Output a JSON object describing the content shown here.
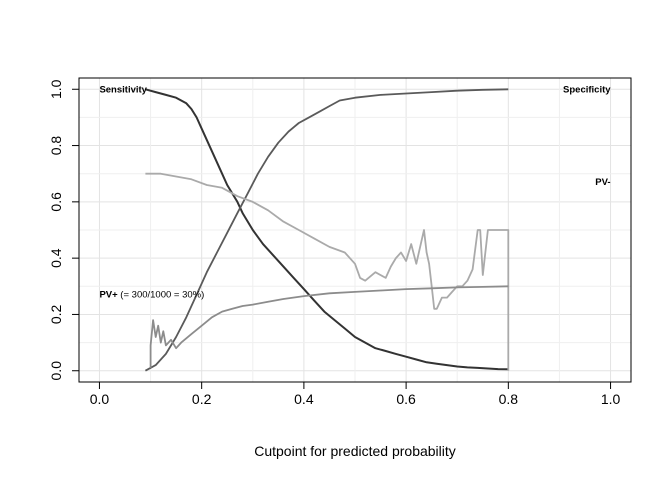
{
  "chart_data": {
    "type": "line",
    "title": "",
    "xlabel": "Cutpoint for predicted probability",
    "ylabel": "",
    "xlim": [
      -0.04,
      1.04
    ],
    "ylim": [
      -0.04,
      1.04
    ],
    "grid": true,
    "x_ticks": [
      "0.0",
      "0.2",
      "0.4",
      "0.6",
      "0.8",
      "1.0"
    ],
    "y_ticks": [
      "0.0",
      "0.2",
      "0.4",
      "0.6",
      "0.8",
      "1.0"
    ],
    "annotations": [
      {
        "text_bold": "Sensitivity",
        "text_rest": "",
        "x": 0.0,
        "y": 1.0,
        "anchor": "start"
      },
      {
        "text_bold": "Specificity",
        "text_rest": "",
        "x": 1.0,
        "y": 1.0,
        "anchor": "end"
      },
      {
        "text_bold": "PV-",
        "text_rest": "",
        "x": 1.0,
        "y": 0.67,
        "anchor": "end"
      },
      {
        "text_bold": "PV+",
        "text_rest": " (= 300/1000 =  30%)",
        "x": 0.0,
        "y": 0.27,
        "anchor": "start"
      }
    ],
    "series": [
      {
        "key": "sensitivity",
        "color": "#333333",
        "width": 2.0,
        "x": [
          0.09,
          0.11,
          0.13,
          0.15,
          0.17,
          0.18,
          0.19,
          0.2,
          0.21,
          0.22,
          0.23,
          0.24,
          0.25,
          0.27,
          0.28,
          0.3,
          0.32,
          0.34,
          0.36,
          0.38,
          0.4,
          0.42,
          0.44,
          0.46,
          0.48,
          0.5,
          0.52,
          0.54,
          0.56,
          0.58,
          0.6,
          0.62,
          0.64,
          0.66,
          0.68,
          0.7,
          0.72,
          0.74,
          0.76,
          0.78,
          0.8
        ],
        "y": [
          1.0,
          0.99,
          0.98,
          0.97,
          0.95,
          0.93,
          0.9,
          0.86,
          0.82,
          0.78,
          0.74,
          0.7,
          0.66,
          0.6,
          0.56,
          0.5,
          0.45,
          0.41,
          0.37,
          0.33,
          0.29,
          0.25,
          0.21,
          0.18,
          0.15,
          0.12,
          0.1,
          0.08,
          0.07,
          0.06,
          0.05,
          0.04,
          0.03,
          0.025,
          0.02,
          0.015,
          0.012,
          0.01,
          0.008,
          0.006,
          0.005
        ]
      },
      {
        "key": "specificity",
        "color": "#5a5a5a",
        "width": 1.8,
        "x": [
          0.09,
          0.11,
          0.13,
          0.15,
          0.17,
          0.19,
          0.21,
          0.23,
          0.25,
          0.27,
          0.29,
          0.31,
          0.33,
          0.35,
          0.37,
          0.39,
          0.41,
          0.43,
          0.45,
          0.47,
          0.5,
          0.55,
          0.6,
          0.65,
          0.7,
          0.75,
          0.8
        ],
        "y": [
          0.0,
          0.02,
          0.06,
          0.12,
          0.19,
          0.27,
          0.35,
          0.42,
          0.49,
          0.56,
          0.63,
          0.7,
          0.76,
          0.81,
          0.85,
          0.88,
          0.9,
          0.92,
          0.94,
          0.96,
          0.97,
          0.98,
          0.985,
          0.99,
          0.995,
          0.998,
          1.0
        ]
      },
      {
        "key": "pv_minus",
        "color": "#aaaaaa",
        "width": 1.8,
        "x": [
          0.09,
          0.12,
          0.15,
          0.18,
          0.21,
          0.24,
          0.27,
          0.3,
          0.33,
          0.36,
          0.39,
          0.42,
          0.45,
          0.48,
          0.5,
          0.51,
          0.52,
          0.54,
          0.56,
          0.57,
          0.58,
          0.59,
          0.6,
          0.61,
          0.62,
          0.63,
          0.635,
          0.64,
          0.645,
          0.65,
          0.655,
          0.66,
          0.67,
          0.68,
          0.69,
          0.7,
          0.71,
          0.72,
          0.73,
          0.74,
          0.745,
          0.75,
          0.76,
          0.77,
          0.78,
          0.79,
          0.8,
          0.8
        ],
        "y": [
          0.7,
          0.7,
          0.69,
          0.68,
          0.66,
          0.65,
          0.62,
          0.6,
          0.57,
          0.53,
          0.5,
          0.47,
          0.44,
          0.42,
          0.38,
          0.33,
          0.32,
          0.35,
          0.33,
          0.37,
          0.4,
          0.42,
          0.39,
          0.45,
          0.38,
          0.46,
          0.5,
          0.42,
          0.38,
          0.3,
          0.22,
          0.22,
          0.26,
          0.26,
          0.28,
          0.3,
          0.3,
          0.32,
          0.36,
          0.5,
          0.5,
          0.34,
          0.5,
          0.5,
          0.5,
          0.5,
          0.5,
          0.0
        ]
      },
      {
        "key": "pv_plus",
        "color": "#8c8c8c",
        "width": 1.8,
        "x": [
          0.1,
          0.1,
          0.105,
          0.11,
          0.115,
          0.12,
          0.125,
          0.13,
          0.14,
          0.15,
          0.16,
          0.18,
          0.2,
          0.22,
          0.24,
          0.26,
          0.28,
          0.3,
          0.33,
          0.36,
          0.4,
          0.45,
          0.5,
          0.55,
          0.6,
          0.65,
          0.7,
          0.75,
          0.8
        ],
        "y": [
          0.01,
          0.09,
          0.18,
          0.12,
          0.16,
          0.1,
          0.14,
          0.09,
          0.11,
          0.08,
          0.1,
          0.13,
          0.16,
          0.19,
          0.21,
          0.22,
          0.23,
          0.235,
          0.245,
          0.255,
          0.265,
          0.275,
          0.28,
          0.285,
          0.29,
          0.293,
          0.296,
          0.298,
          0.3
        ]
      }
    ]
  }
}
